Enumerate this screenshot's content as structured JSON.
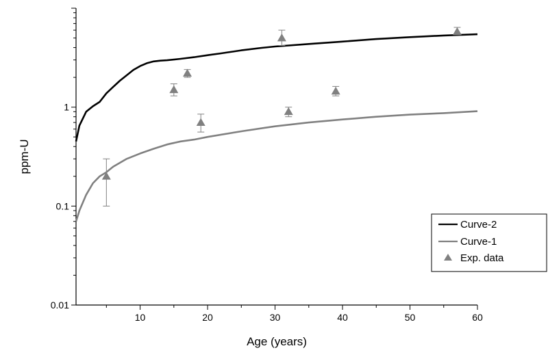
{
  "chart_data": {
    "type": "line",
    "xlabel": "Age (years)",
    "ylabel": "ppm-U",
    "xlim": [
      0.5,
      60
    ],
    "ylim": [
      0.01,
      10
    ],
    "yscale": "log",
    "grid": false,
    "legend_position": "bottom-right",
    "x_ticks": [
      10,
      20,
      30,
      40,
      50,
      60
    ],
    "x_tick_labels": [
      "10",
      "20",
      "30",
      "40",
      "50",
      "60"
    ],
    "y_ticks": [
      0.01,
      0.1,
      1
    ],
    "y_tick_labels": [
      "0.01",
      "0.1",
      "1"
    ],
    "series": [
      {
        "name": "Curve-2",
        "kind": "line",
        "color": "#000000",
        "x": [
          0.5,
          1,
          2,
          3,
          4,
          5,
          6,
          7,
          8,
          9,
          10,
          11,
          12,
          13,
          14,
          16,
          18,
          20,
          22,
          25,
          28,
          30,
          35,
          40,
          45,
          50,
          55,
          60
        ],
        "y": [
          0.45,
          0.65,
          0.9,
          1.02,
          1.13,
          1.38,
          1.6,
          1.85,
          2.1,
          2.38,
          2.6,
          2.78,
          2.9,
          2.95,
          2.98,
          3.08,
          3.2,
          3.35,
          3.5,
          3.75,
          3.97,
          4.1,
          4.35,
          4.6,
          4.88,
          5.1,
          5.3,
          5.45
        ]
      },
      {
        "name": "Curve-1",
        "kind": "line",
        "color": "#808080",
        "x": [
          0.5,
          1,
          2,
          3,
          4,
          5,
          6,
          8,
          10,
          12,
          14,
          16,
          18,
          20,
          25,
          30,
          35,
          40,
          45,
          50,
          55,
          60
        ],
        "y": [
          0.07,
          0.09,
          0.13,
          0.17,
          0.2,
          0.22,
          0.25,
          0.3,
          0.34,
          0.38,
          0.42,
          0.45,
          0.47,
          0.5,
          0.57,
          0.64,
          0.7,
          0.75,
          0.8,
          0.84,
          0.87,
          0.91
        ]
      },
      {
        "name": "Exp. data",
        "kind": "scatter",
        "marker": "triangle",
        "color": "#808080",
        "x": [
          5,
          15,
          17,
          19,
          31,
          32,
          39,
          57
        ],
        "y": [
          0.2,
          1.5,
          2.2,
          0.7,
          5.0,
          0.9,
          1.45,
          5.8
        ],
        "err_low": [
          0.1,
          1.3,
          2.0,
          0.56,
          4.2,
          0.8,
          1.3,
          5.4
        ],
        "err_high": [
          0.3,
          1.72,
          2.4,
          0.85,
          6.0,
          1.0,
          1.62,
          6.4
        ]
      }
    ]
  }
}
